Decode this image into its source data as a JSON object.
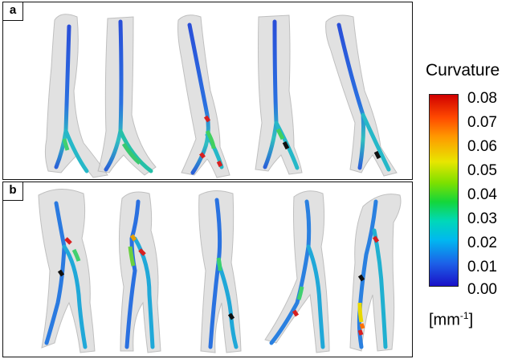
{
  "panels": {
    "a": {
      "label": "a"
    },
    "b": {
      "label": "b"
    }
  },
  "colorbar": {
    "title": "Curvature",
    "ticks": [
      "0.08",
      "0.07",
      "0.06",
      "0.05",
      "0.04",
      "0.03",
      "0.02",
      "0.01",
      "0.00"
    ],
    "units_base": "[mm",
    "units_exp": "-1",
    "units_close": "]",
    "colors": {
      "max": "#d00000",
      "high": "#ff9900",
      "mid_high": "#e8e600",
      "mid": "#14d63a",
      "low_mid": "#00d8b8",
      "low": "#00b8f0",
      "min": "#1a10c8"
    }
  }
}
